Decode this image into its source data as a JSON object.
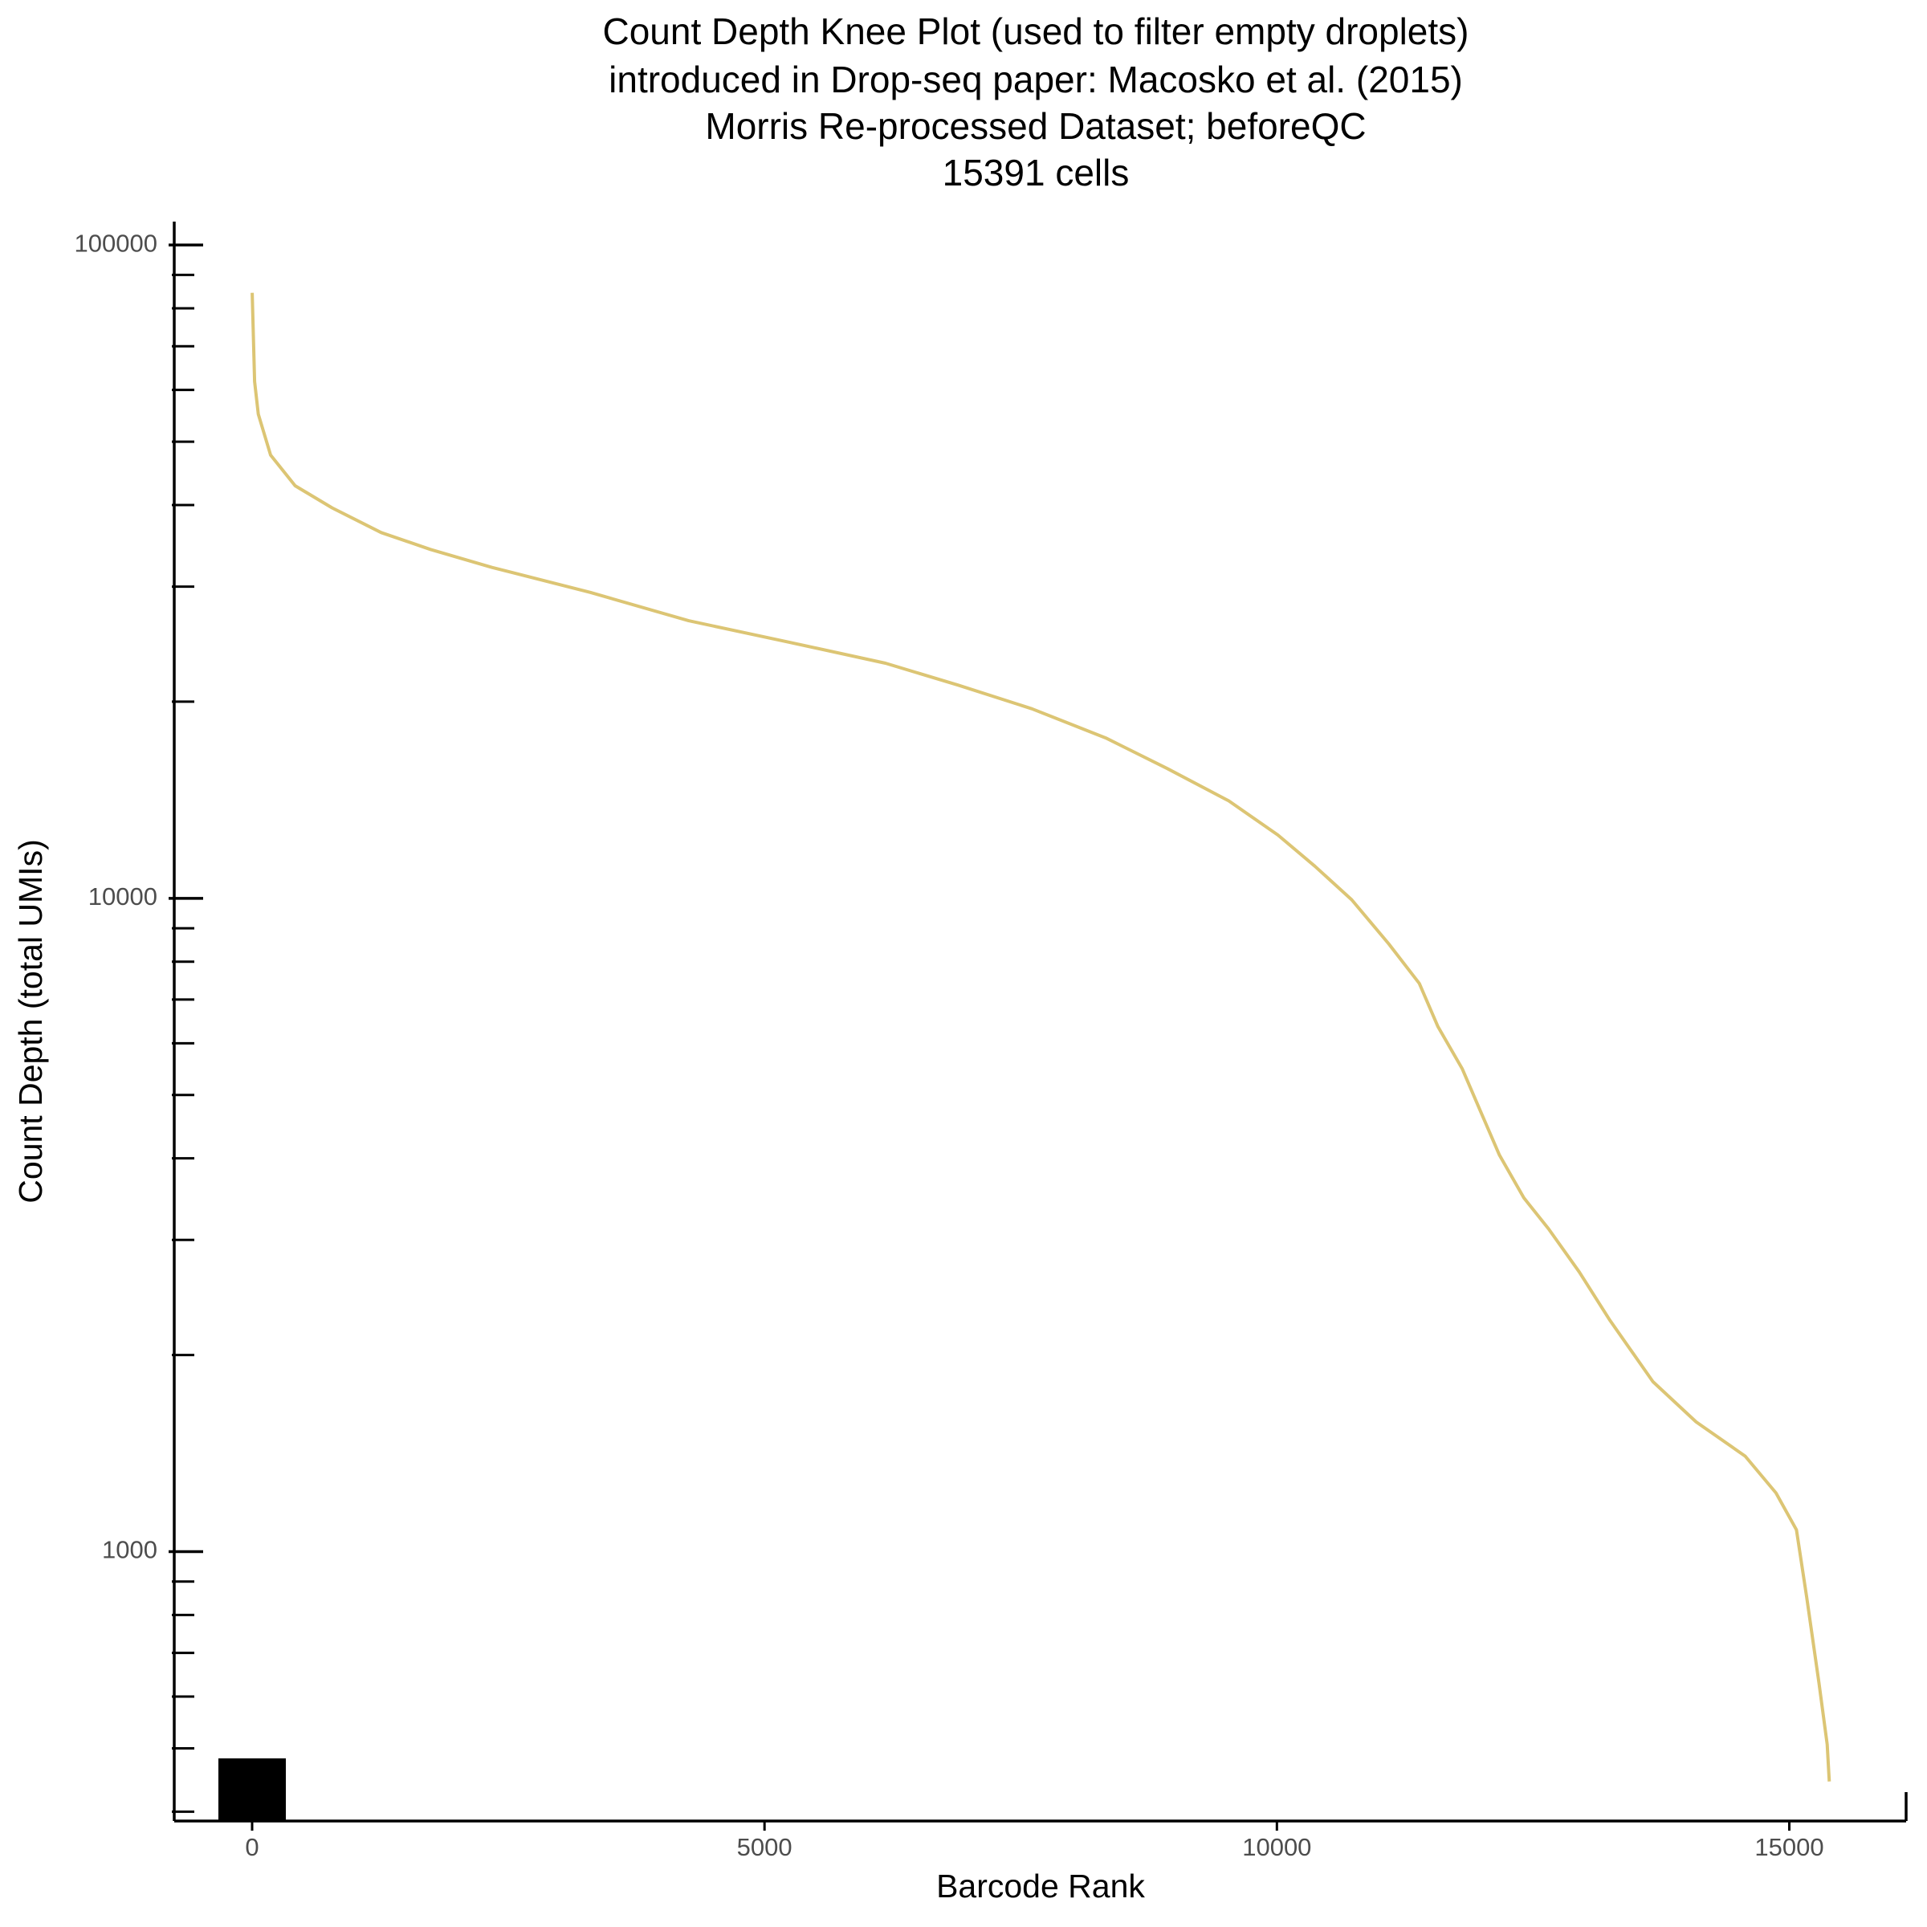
{
  "chart_data": {
    "type": "line",
    "title": [
      "Count Depth Knee Plot (used to filter empty droplets)",
      "introduced in Drop-seq paper: Macosko et al. (2015)",
      "Morris Re-processed Dataset; beforeQC",
      "15391 cells"
    ],
    "x_label": "Barcode Rank",
    "y_label": "Count Depth (total UMIs)",
    "x": [
      1,
      24,
      60,
      180,
      420,
      780,
      1260,
      1740,
      2340,
      3300,
      4260,
      5220,
      6180,
      6890,
      7610,
      8330,
      8930,
      9530,
      10010,
      10370,
      10730,
      11090,
      11390,
      11570,
      11810,
      11990,
      12170,
      12410,
      12650,
      12950,
      13250,
      13670,
      14090,
      14570,
      14870,
      15070,
      15170,
      15290,
      15370,
      15390
    ],
    "series": [
      {
        "name": "Count Depth",
        "color": "#dcc574",
        "values": [
          84500,
          61800,
          55100,
          47700,
          42800,
          39600,
          36300,
          34200,
          32100,
          29400,
          26600,
          24700,
          22900,
          21200,
          19500,
          17600,
          15800,
          14100,
          12500,
          11200,
          9950,
          8520,
          7410,
          6370,
          5480,
          4710,
          4050,
          3480,
          3120,
          2680,
          2260,
          1820,
          1580,
          1400,
          1230,
          1080,
          851,
          629,
          507,
          445
        ]
      }
    ],
    "xlim": [
      -760,
      16140
    ],
    "xticks": [
      0,
      5000,
      10000,
      15000
    ],
    "ylim": [
      387,
      108600
    ],
    "yticks": [
      1000,
      10000,
      100000
    ],
    "yminorticks": [
      400,
      500,
      600,
      700,
      800,
      900,
      2000,
      3000,
      4000,
      5000,
      6000,
      7000,
      8000,
      9000,
      20000,
      30000,
      40000,
      50000,
      60000,
      70000,
      80000,
      90000
    ],
    "log_y": true
  }
}
